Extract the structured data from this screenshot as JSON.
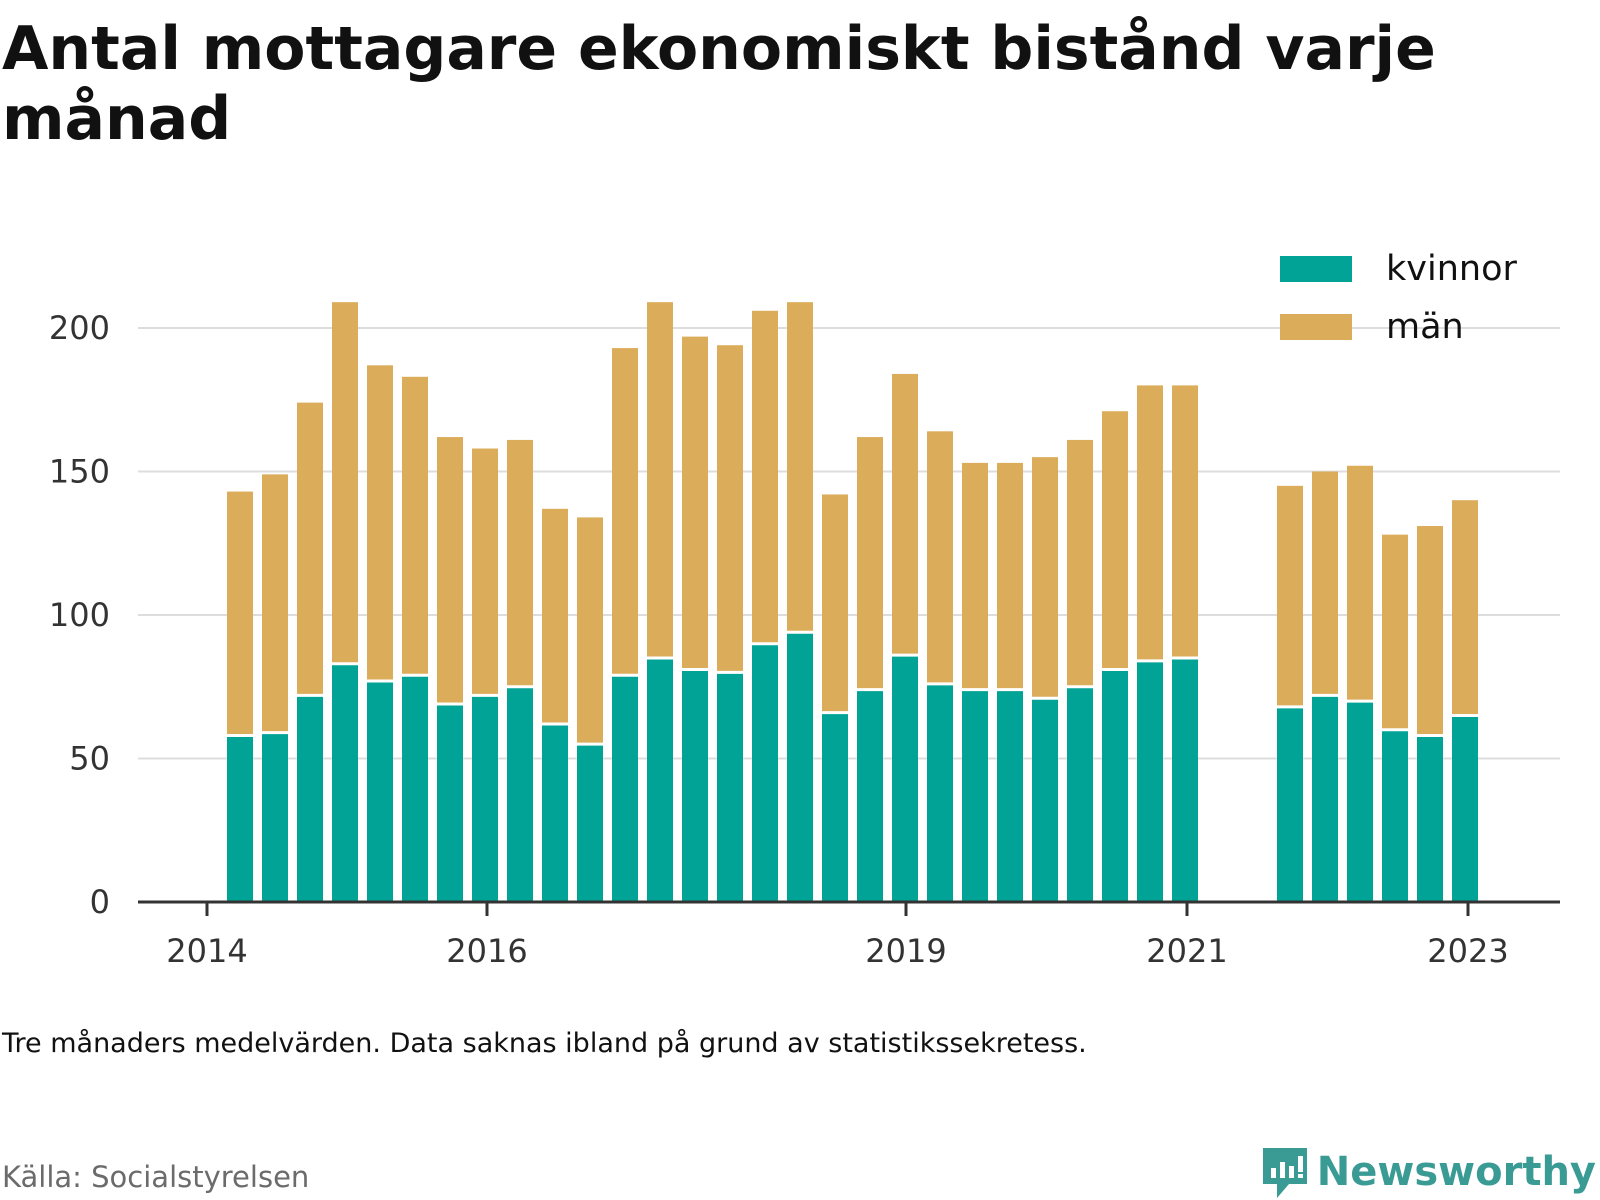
{
  "title": "Antal mottagare ekonomiskt bistånd varje månad",
  "note": "Tre månaders medelvärden. Data saknas ibland på grund av statistikssekretess.",
  "source": "Källa: Socialstyrelsen",
  "brand": "Newsworthy",
  "colors": {
    "kvinnor": "#00a395",
    "man": "#dbac5a",
    "grid": "#dddddd",
    "axis": "#333333",
    "brand": "#3a9b94"
  },
  "chart_data": {
    "type": "bar",
    "stacked": true,
    "x_ticks": [
      "2014",
      "2016",
      "2019",
      "2021",
      "2023"
    ],
    "y_ticks": [
      "0",
      "50",
      "100",
      "150",
      "200"
    ],
    "ylim": [
      0,
      215
    ],
    "legend_placement": "top-right",
    "series": [
      {
        "name": "kvinnor",
        "values": [
          58,
          59,
          72,
          83,
          77,
          79,
          69,
          72,
          75,
          62,
          55,
          79,
          85,
          81,
          80,
          90,
          94,
          66,
          74,
          86,
          76,
          74,
          74,
          71,
          75,
          81,
          84,
          85,
          68,
          72,
          70,
          60,
          58,
          65
        ]
      },
      {
        "name": "män",
        "values": [
          85,
          90,
          102,
          126,
          110,
          104,
          93,
          86,
          86,
          75,
          79,
          114,
          124,
          116,
          114,
          116,
          115,
          76,
          88,
          98,
          88,
          79,
          79,
          84,
          86,
          90,
          96,
          95,
          77,
          78,
          82,
          68,
          73,
          75
        ]
      }
    ]
  }
}
